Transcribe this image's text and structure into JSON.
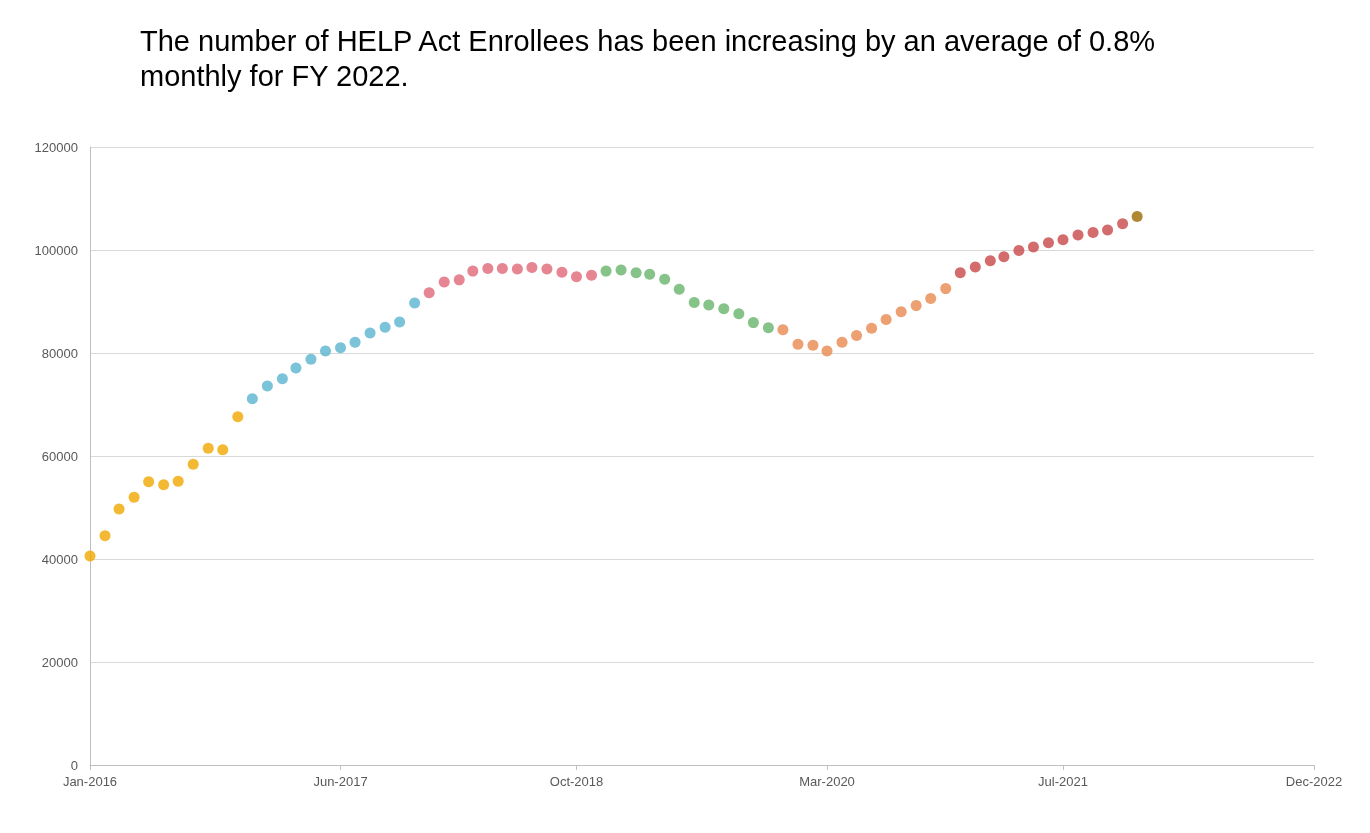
{
  "chart_data": {
    "type": "scatter",
    "title": "The number of HELP Act Enrollees has been increasing by an average of 0.8% monthly for FY 2022.",
    "xlim": [
      "2016-01",
      "2022-12"
    ],
    "xticks": [
      {
        "value": "2016-01",
        "label": "Jan-2016"
      },
      {
        "value": "2017-06",
        "label": "Jun-2017"
      },
      {
        "value": "2018-10",
        "label": "Oct-2018"
      },
      {
        "value": "2020-03",
        "label": "Mar-2020"
      },
      {
        "value": "2021-07",
        "label": "Jul-2021"
      },
      {
        "value": "2022-12",
        "label": "Dec-2022"
      }
    ],
    "ylim": [
      0,
      120000
    ],
    "yticks": [
      0,
      20000,
      40000,
      60000,
      80000,
      100000,
      120000
    ],
    "grid": "y",
    "marker": "circle",
    "series": [
      {
        "color": "#f0a800",
        "x": [
          "2016-01",
          "2016-02",
          "2016-03",
          "2016-04",
          "2016-05",
          "2016-06",
          "2016-07",
          "2016-08",
          "2016-09",
          "2016-10",
          "2016-11"
        ],
        "values": [
          40600,
          44500,
          49700,
          52000,
          55000,
          54400,
          55100,
          58400,
          61500,
          61200,
          67600
        ]
      },
      {
        "color": "#5ab4cf",
        "x": [
          "2016-12",
          "2017-01",
          "2017-02",
          "2017-03",
          "2017-04",
          "2017-05",
          "2017-06",
          "2017-07",
          "2017-08",
          "2017-09",
          "2017-10",
          "2017-11"
        ],
        "values": [
          71100,
          73600,
          75000,
          77100,
          78800,
          80400,
          81000,
          82100,
          83900,
          85000,
          86000,
          89700
        ]
      },
      {
        "color": "#e06878",
        "x": [
          "2017-12",
          "2018-01",
          "2018-02",
          "2018-03",
          "2018-04",
          "2018-05",
          "2018-06",
          "2018-07",
          "2018-08",
          "2018-09",
          "2018-10",
          "2018-11"
        ],
        "values": [
          91700,
          93800,
          94200,
          95900,
          96400,
          96400,
          96300,
          96600,
          96300,
          95700,
          94800,
          95100
        ]
      },
      {
        "color": "#68b46a",
        "x": [
          "2018-12",
          "2019-01",
          "2019-02",
          "2019-03",
          "2019-04",
          "2019-05",
          "2019-06",
          "2019-07",
          "2019-08",
          "2019-09",
          "2019-10",
          "2019-11"
        ],
        "values": [
          95900,
          96100,
          95600,
          95300,
          94300,
          92400,
          89800,
          89300,
          88600,
          87600,
          85900,
          84900
        ]
      },
      {
        "color": "#e88a50",
        "x": [
          "2019-12",
          "2020-01",
          "2020-02",
          "2020-03",
          "2020-04",
          "2020-05",
          "2020-06",
          "2020-07",
          "2020-08",
          "2020-09",
          "2020-10",
          "2020-11"
        ],
        "values": [
          84500,
          81700,
          81500,
          80400,
          82100,
          83400,
          84800,
          86500,
          88000,
          89200,
          90600,
          92500
        ]
      },
      {
        "color": "#c84848",
        "x": [
          "2020-12",
          "2021-01",
          "2021-02",
          "2021-03",
          "2021-04",
          "2021-05",
          "2021-06",
          "2021-07",
          "2021-08",
          "2021-09",
          "2021-10",
          "2021-11"
        ],
        "values": [
          95600,
          96700,
          97900,
          98700,
          99900,
          100600,
          101400,
          102000,
          102900,
          103400,
          103900,
          105100
        ]
      },
      {
        "color": "#9a6a00",
        "x": [
          "2021-12"
        ],
        "values": [
          106500
        ]
      }
    ]
  }
}
